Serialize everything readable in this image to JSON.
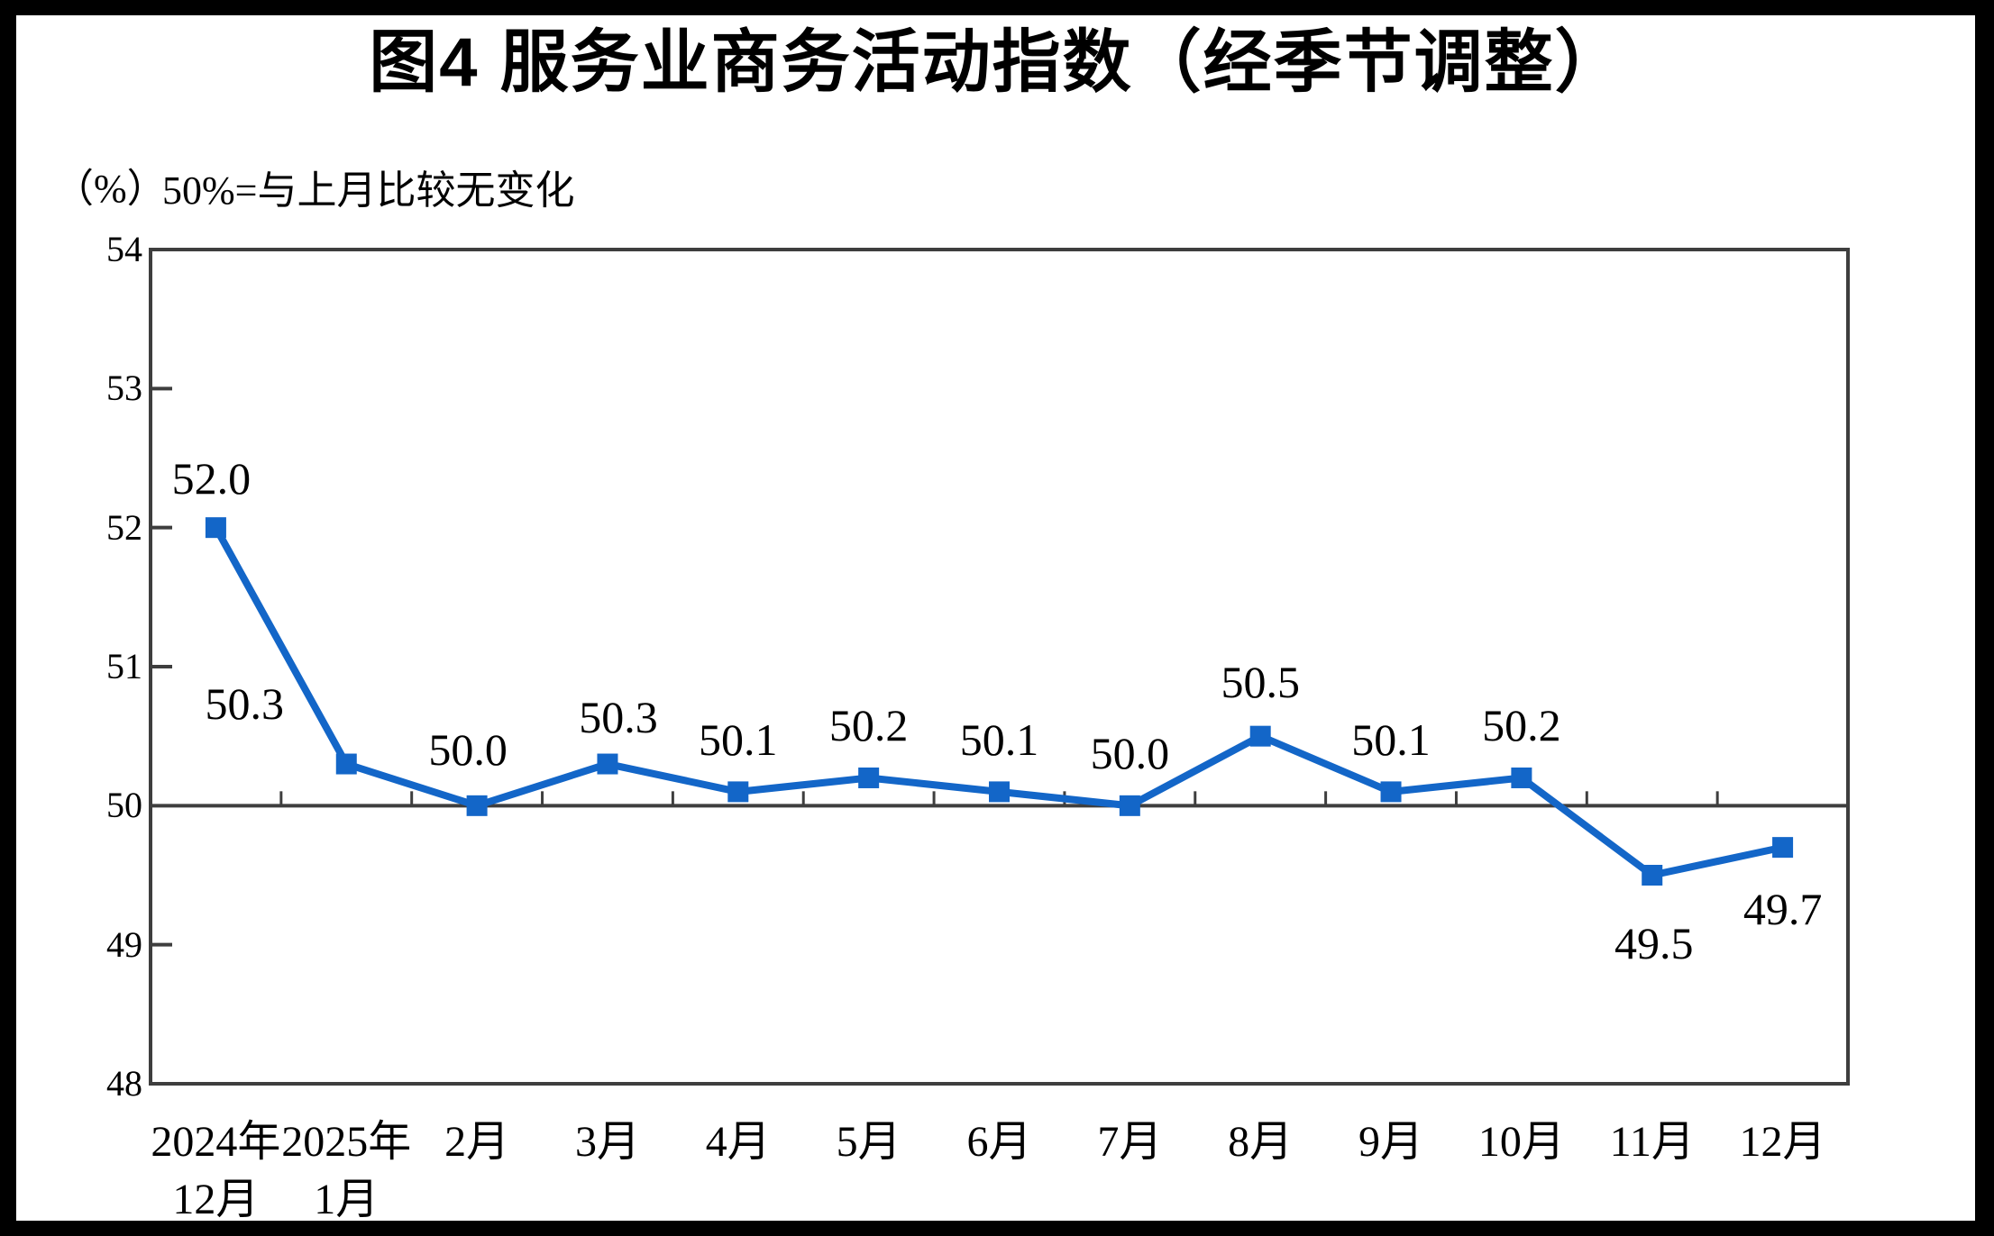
{
  "colors": {
    "line": "#1366C8",
    "marker": "#1366C8",
    "axis": "#3E3E3E",
    "text": "#000000",
    "background": "#FFFFFF",
    "frame": "#000000"
  },
  "chart_data": {
    "type": "line",
    "title": "图4 服务业商务活动指数（经季节调整）",
    "ylabel": "（%）",
    "note": "50%=与上月比较无变化",
    "xlabel": "",
    "categories": [
      [
        "2024年",
        "12月"
      ],
      [
        "2025年",
        "1月"
      ],
      [
        "2月"
      ],
      [
        "3月"
      ],
      [
        "4月"
      ],
      [
        "5月"
      ],
      [
        "6月"
      ],
      [
        "7月"
      ],
      [
        "8月"
      ],
      [
        "9月"
      ],
      [
        "10月"
      ],
      [
        "11月"
      ],
      [
        "12月"
      ]
    ],
    "values": [
      52.0,
      50.3,
      50.0,
      50.3,
      50.1,
      50.2,
      50.1,
      50.0,
      50.5,
      50.1,
      50.2,
      49.5,
      49.7
    ],
    "data_labels": [
      "52.0",
      "50.3",
      "50.0",
      "50.3",
      "50.1",
      "50.2",
      "50.1",
      "50.0",
      "50.5",
      "50.1",
      "50.2",
      "49.5",
      "49.7"
    ],
    "ylim": [
      48,
      54
    ],
    "yticks": [
      54,
      53,
      52,
      51,
      50,
      49,
      48
    ],
    "baseline": 50,
    "grid": false,
    "legend": false,
    "marker": "square"
  }
}
